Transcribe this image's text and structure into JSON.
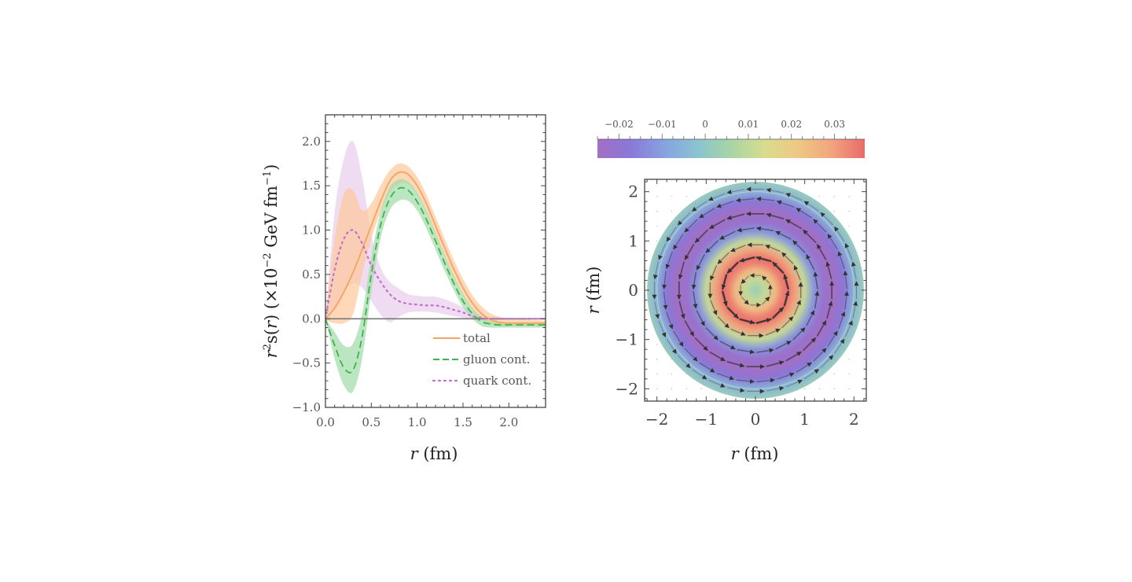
{
  "chart_data": [
    {
      "type": "line",
      "title": "",
      "xlabel": "r (fm)",
      "ylabel": "r^2 s(r) (×10^-2 GeV fm^-1)",
      "ylabel_parts": {
        "main": "r²s(r) (×10",
        "exp": "−2",
        "unit": " GeV fm",
        "unit_exp": "−1",
        "close": ")"
      },
      "xlim": [
        0,
        2.4
      ],
      "ylim": [
        -1.0,
        2.3
      ],
      "xticks": [
        0.0,
        0.5,
        1.0,
        1.5,
        2.0
      ],
      "xtick_labels": [
        "0.0",
        "0.5",
        "1.0",
        "1.5",
        "2.0"
      ],
      "yticks": [
        -1.0,
        -0.5,
        0.0,
        0.5,
        1.0,
        1.5,
        2.0
      ],
      "ytick_labels": [
        "−1.0",
        "−0.5",
        "0.0",
        "0.5",
        "1.0",
        "1.5",
        "2.0"
      ],
      "zero_line": true,
      "legend_position": "bottom-right",
      "series": [
        {
          "name": "total",
          "style": "solid",
          "color": "#f4a460",
          "band_color": "#fdc89a",
          "x": [
            0.0,
            0.1,
            0.2,
            0.3,
            0.4,
            0.5,
            0.6,
            0.7,
            0.8,
            0.9,
            1.0,
            1.1,
            1.2,
            1.3,
            1.4,
            1.5,
            1.6,
            1.7,
            1.8,
            1.9,
            2.0,
            2.2,
            2.4
          ],
          "y": [
            0.0,
            0.12,
            0.3,
            0.52,
            0.78,
            1.05,
            1.32,
            1.55,
            1.65,
            1.63,
            1.5,
            1.3,
            1.05,
            0.8,
            0.56,
            0.35,
            0.18,
            0.06,
            -0.01,
            -0.04,
            -0.05,
            -0.05,
            -0.05
          ],
          "upper": [
            0.02,
            0.9,
            1.4,
            1.45,
            1.22,
            1.3,
            1.5,
            1.67,
            1.75,
            1.72,
            1.6,
            1.4,
            1.15,
            0.9,
            0.66,
            0.45,
            0.27,
            0.14,
            0.06,
            0.02,
            0.0,
            -0.01,
            -0.02
          ],
          "lower": [
            -0.02,
            -0.05,
            -0.05,
            0.05,
            0.5,
            0.9,
            1.2,
            1.42,
            1.52,
            1.52,
            1.4,
            1.2,
            0.95,
            0.7,
            0.46,
            0.26,
            0.1,
            0.0,
            -0.06,
            -0.08,
            -0.08,
            -0.08,
            -0.08
          ]
        },
        {
          "name": "gluon cont.",
          "style": "dashed",
          "color": "#3cb44b",
          "band_color": "#9fdca8",
          "x": [
            0.0,
            0.1,
            0.2,
            0.3,
            0.4,
            0.5,
            0.6,
            0.7,
            0.8,
            0.9,
            1.0,
            1.1,
            1.2,
            1.3,
            1.4,
            1.5,
            1.6,
            1.7,
            1.8,
            1.9,
            2.0,
            2.2,
            2.4
          ],
          "y": [
            0.0,
            -0.3,
            -0.55,
            -0.58,
            -0.2,
            0.5,
            1.05,
            1.35,
            1.47,
            1.45,
            1.32,
            1.12,
            0.88,
            0.63,
            0.4,
            0.2,
            0.06,
            -0.03,
            -0.06,
            -0.07,
            -0.07,
            -0.07,
            -0.07
          ],
          "upper": [
            0.0,
            -0.15,
            -0.3,
            -0.28,
            0.05,
            0.7,
            1.2,
            1.48,
            1.57,
            1.55,
            1.42,
            1.22,
            0.97,
            0.72,
            0.48,
            0.28,
            0.12,
            0.02,
            -0.03,
            -0.04,
            -0.04,
            -0.04,
            -0.04
          ],
          "lower": [
            0.0,
            -0.45,
            -0.75,
            -0.82,
            -0.45,
            0.3,
            0.9,
            1.22,
            1.33,
            1.33,
            1.22,
            1.02,
            0.78,
            0.54,
            0.32,
            0.13,
            0.0,
            -0.08,
            -0.1,
            -0.1,
            -0.1,
            -0.1,
            -0.1
          ]
        },
        {
          "name": "quark cont.",
          "style": "dotted",
          "color": "#c36fcf",
          "band_color": "#e9d0ee",
          "x": [
            0.0,
            0.1,
            0.2,
            0.3,
            0.4,
            0.5,
            0.6,
            0.7,
            0.8,
            0.9,
            1.0,
            1.1,
            1.2,
            1.3,
            1.4,
            1.5,
            1.6,
            1.7,
            1.8,
            2.0,
            2.2,
            2.4
          ],
          "y": [
            0.0,
            0.55,
            0.9,
            1.0,
            0.85,
            0.6,
            0.42,
            0.28,
            0.2,
            0.17,
            0.16,
            0.15,
            0.15,
            0.13,
            0.1,
            0.07,
            0.03,
            0.01,
            0.0,
            0.0,
            0.0,
            0.0
          ],
          "upper": [
            0.0,
            1.2,
            1.8,
            2.0,
            1.6,
            0.95,
            0.58,
            0.42,
            0.34,
            0.28,
            0.26,
            0.25,
            0.25,
            0.22,
            0.18,
            0.13,
            0.08,
            0.04,
            0.02,
            0.01,
            0.0,
            0.0
          ],
          "lower": [
            0.0,
            0.1,
            0.3,
            0.4,
            0.35,
            0.2,
            0.05,
            -0.04,
            0.02,
            0.07,
            0.08,
            0.08,
            0.07,
            0.05,
            0.03,
            0.01,
            -0.01,
            -0.02,
            -0.02,
            -0.01,
            0.0,
            0.0
          ]
        }
      ]
    },
    {
      "type": "heatmap",
      "subtype": "density-with-vector-field",
      "title": "",
      "xlabel": "r (fm)",
      "ylabel": "r (fm)",
      "xlim": [
        -2.25,
        2.25
      ],
      "ylim": [
        -2.25,
        2.25
      ],
      "xticks": [
        -2,
        -1,
        0,
        1,
        2
      ],
      "xtick_labels": [
        "−2",
        "−1",
        "0",
        "1",
        "2"
      ],
      "yticks": [
        -2,
        -1,
        0,
        1,
        2
      ],
      "ytick_labels": [
        "−2",
        "−1",
        "0",
        "1",
        "2"
      ],
      "colorbar": {
        "position": "top",
        "range": [
          -0.025,
          0.037
        ],
        "ticks": [
          -0.02,
          -0.01,
          0,
          0.01,
          0.02,
          0.03
        ],
        "tick_labels": [
          "−0.02",
          "−0.01",
          "0",
          "0.01",
          "0.02",
          "0.03"
        ],
        "colors": [
          "#a36fc4",
          "#8a78d8",
          "#86a2e0",
          "#8ac4cf",
          "#a8d4a4",
          "#d8dc8e",
          "#eec884",
          "#f2a57e",
          "#e86a6a"
        ]
      },
      "radial_profile": {
        "r": [
          0.0,
          0.2,
          0.4,
          0.55,
          0.65,
          0.8,
          1.0,
          1.2,
          1.4,
          1.6,
          1.8,
          2.0,
          2.2
        ],
        "value": [
          0.003,
          0.01,
          0.025,
          0.034,
          0.036,
          0.03,
          0.01,
          -0.012,
          -0.022,
          -0.025,
          -0.018,
          -0.006,
          0.002
        ]
      },
      "disk_radius": 2.2,
      "vector_rings": [
        {
          "r": 0.3,
          "count": 8,
          "strength": 0.25
        },
        {
          "r": 0.65,
          "count": 12,
          "strength": 1.0
        },
        {
          "r": 0.92,
          "count": 16,
          "strength": 0.35
        },
        {
          "r": 1.25,
          "count": 20,
          "strength": 0.45
        },
        {
          "r": 1.55,
          "count": 24,
          "strength": 0.6
        },
        {
          "r": 1.85,
          "count": 28,
          "strength": 0.3
        },
        {
          "r": 2.05,
          "count": 32,
          "strength": 0.1
        }
      ]
    }
  ]
}
